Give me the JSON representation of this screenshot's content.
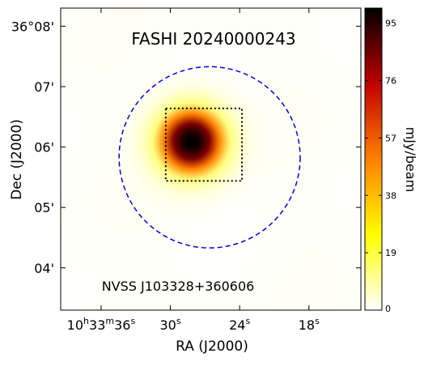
{
  "chart_data": {
    "type": "heatmap",
    "title": "FASHI 20240000243",
    "annotation": "NVSS J103328+360606",
    "xlabel": "RA (J2000)",
    "ylabel": "Dec (J2000)",
    "colorbar": {
      "label": "mJy/beam",
      "min": 0,
      "max": 100,
      "ticks": [
        "0",
        "19",
        "38",
        "57",
        "76",
        "95"
      ],
      "tick_values": [
        0,
        19,
        38,
        57,
        76,
        95
      ],
      "colormap": "afmhot_r"
    },
    "x_ticks": [
      {
        "h": "10",
        "m": "33",
        "s": "36",
        "value_s": 36
      },
      {
        "h": "",
        "m": "",
        "s": "30",
        "value_s": 30
      },
      {
        "h": "",
        "m": "",
        "s": "24",
        "value_s": 24
      },
      {
        "h": "",
        "m": "",
        "s": "18",
        "value_s": 18
      }
    ],
    "x_tick_h_suffix": "h",
    "x_tick_m_suffix": "m",
    "x_tick_s_suffix": "s",
    "xlim_s": [
      39.5,
      13.5
    ],
    "y_ticks": [
      {
        "label": "36°08'",
        "value_min": 8
      },
      {
        "label": "07'",
        "value_min": 7
      },
      {
        "label": "06'",
        "value_min": 6
      },
      {
        "label": "05'",
        "value_min": 5
      },
      {
        "label": "04'",
        "value_min": 4
      }
    ],
    "ylim_min": [
      3.3,
      8.3
    ],
    "source": {
      "ra_s": 28.2,
      "dec_min": 6.1,
      "peak": 100,
      "sigma_arcmin": 0.38
    },
    "circle": {
      "ra_s": 26.6,
      "dec_min": 5.83,
      "radius_arcmin": 1.5,
      "color": "#0000dd",
      "style": "dashed"
    },
    "box": {
      "ra_s_range": [
        30.4,
        23.8
      ],
      "dec_min_range": [
        5.44,
        6.64
      ],
      "color": "#000000",
      "style": "dotted"
    }
  }
}
